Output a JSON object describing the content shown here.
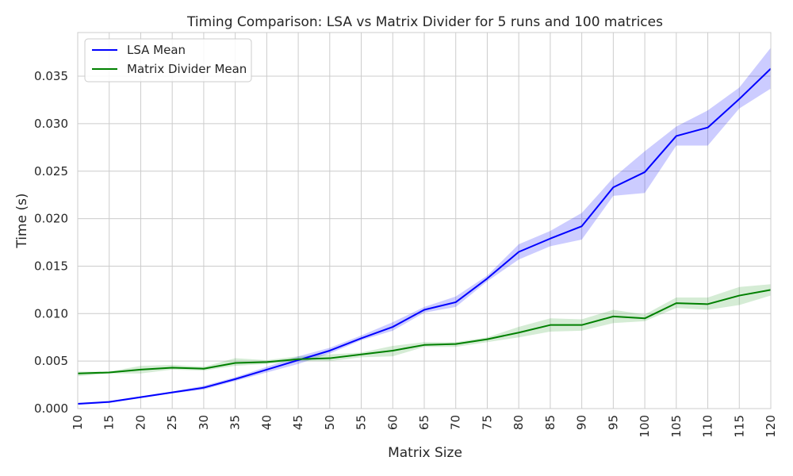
{
  "chart_data": {
    "type": "line",
    "title": "Timing Comparison: LSA vs Matrix Divider for 5 runs and 100 matrices",
    "xlabel": "Matrix Size",
    "ylabel": "Time (s)",
    "x": [
      10,
      15,
      20,
      25,
      30,
      35,
      40,
      45,
      50,
      55,
      60,
      65,
      70,
      75,
      80,
      85,
      90,
      95,
      100,
      105,
      110,
      115,
      120
    ],
    "xlim": [
      10,
      120
    ],
    "ylim": [
      0,
      0.0396
    ],
    "yticks": [
      "0.000",
      "0.005",
      "0.010",
      "0.015",
      "0.020",
      "0.025",
      "0.030",
      "0.035"
    ],
    "grid": true,
    "legend_position": "top-left",
    "series": [
      {
        "name": "LSA Mean",
        "color": "#0000ff",
        "band_color": "#0000ff",
        "values": [
          0.0005,
          0.0007,
          0.0012,
          0.0017,
          0.0022,
          0.0031,
          0.0041,
          0.0051,
          0.0061,
          0.0074,
          0.0086,
          0.0104,
          0.0112,
          0.0137,
          0.0165,
          0.0179,
          0.0192,
          0.0233,
          0.0249,
          0.0287,
          0.0296,
          0.0326,
          0.0358
        ],
        "lower": [
          0.0004,
          0.0006,
          0.0011,
          0.0016,
          0.002,
          0.0029,
          0.0038,
          0.0047,
          0.0058,
          0.0072,
          0.0082,
          0.0101,
          0.0107,
          0.0134,
          0.0157,
          0.0171,
          0.0178,
          0.0224,
          0.0227,
          0.0277,
          0.0277,
          0.0316,
          0.0337
        ],
        "upper": [
          0.0006,
          0.0008,
          0.0013,
          0.0018,
          0.0024,
          0.0033,
          0.0044,
          0.0055,
          0.0064,
          0.0077,
          0.0091,
          0.0107,
          0.0118,
          0.014,
          0.0173,
          0.0187,
          0.0206,
          0.0243,
          0.0271,
          0.0297,
          0.0314,
          0.0338,
          0.038
        ]
      },
      {
        "name": "Matrix Divider Mean",
        "color": "#008000",
        "band_color": "#2ca02c",
        "values": [
          0.0037,
          0.0038,
          0.0041,
          0.0043,
          0.0042,
          0.0048,
          0.0049,
          0.0052,
          0.0053,
          0.0057,
          0.0061,
          0.0067,
          0.0068,
          0.0073,
          0.008,
          0.0088,
          0.0088,
          0.0097,
          0.0095,
          0.0111,
          0.011,
          0.0119,
          0.0125
        ],
        "lower": [
          0.0034,
          0.0037,
          0.0037,
          0.0041,
          0.004,
          0.0045,
          0.0047,
          0.005,
          0.005,
          0.0054,
          0.0055,
          0.0065,
          0.0065,
          0.007,
          0.0075,
          0.0081,
          0.0082,
          0.009,
          0.0092,
          0.0106,
          0.0104,
          0.0109,
          0.0119
        ],
        "upper": [
          0.0039,
          0.0039,
          0.0045,
          0.0046,
          0.0044,
          0.0053,
          0.0051,
          0.0055,
          0.0057,
          0.0059,
          0.0066,
          0.007,
          0.007,
          0.0075,
          0.0086,
          0.0095,
          0.0094,
          0.0104,
          0.0099,
          0.0117,
          0.0117,
          0.0128,
          0.0131
        ]
      }
    ]
  }
}
